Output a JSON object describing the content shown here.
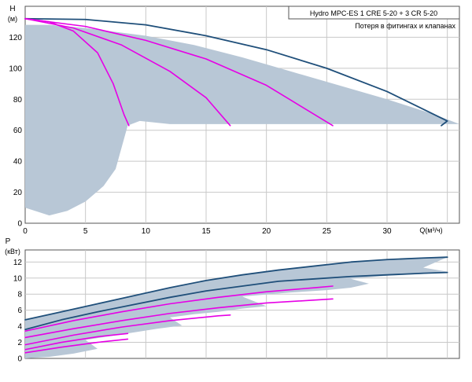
{
  "colors": {
    "region": "#b8c7d6",
    "outline": "#1f4f7a",
    "magenta": "#e600e6",
    "grid": "#c8c8c8",
    "axis": "#555555"
  },
  "legend": {
    "line1": "Hydro MPC-ES 1 CRE 5-20  +  3 CR 5-20",
    "line2": "Потеря в фитингах и клапанах"
  },
  "chart_data": [
    {
      "type": "area",
      "ylabel_top": "H",
      "ylabel_unit": "(м)",
      "xlabel": "Q(м³/ч)",
      "xlim": [
        0,
        36
      ],
      "ylim": [
        0,
        140
      ],
      "x_ticks": [
        0,
        5,
        10,
        15,
        20,
        25,
        30
      ],
      "y_ticks": [
        0,
        20,
        40,
        60,
        80,
        100,
        120
      ],
      "grid": true,
      "region": [
        [
          0,
          10
        ],
        [
          2,
          5
        ],
        [
          3.5,
          8
        ],
        [
          5,
          14
        ],
        [
          6.5,
          24
        ],
        [
          7.5,
          35
        ],
        [
          8.5,
          63
        ],
        [
          9.5,
          66
        ],
        [
          12,
          64
        ],
        [
          36,
          64
        ],
        [
          34,
          70
        ],
        [
          30,
          80
        ],
        [
          26,
          89
        ],
        [
          22,
          98
        ],
        [
          18,
          107
        ],
        [
          14,
          115
        ],
        [
          10,
          121
        ],
        [
          5,
          126
        ],
        [
          2,
          128
        ],
        [
          0,
          128
        ]
      ],
      "series": [
        {
          "outline": true,
          "points": [
            [
              0,
              132
            ],
            [
              5,
              131.5
            ],
            [
              10,
              128
            ],
            [
              15,
              121
            ],
            [
              20,
              112
            ],
            [
              25,
              100
            ],
            [
              30,
              85
            ],
            [
              35,
              66
            ],
            [
              34.5,
              63
            ]
          ]
        },
        {
          "points": [
            [
              0,
              132
            ],
            [
              2,
              130
            ],
            [
              4,
              124
            ],
            [
              6,
              110
            ],
            [
              7.3,
              90
            ],
            [
              8.2,
              70
            ],
            [
              8.6,
              63
            ]
          ]
        },
        {
          "points": [
            [
              0,
              132
            ],
            [
              4,
              126
            ],
            [
              8,
              115
            ],
            [
              12,
              98
            ],
            [
              15,
              81
            ],
            [
              17,
              63
            ]
          ]
        },
        {
          "points": [
            [
              0,
              132
            ],
            [
              5,
              127
            ],
            [
              10,
              118
            ],
            [
              15,
              106
            ],
            [
              20,
              89
            ],
            [
              25.5,
              63
            ]
          ]
        }
      ]
    },
    {
      "type": "area",
      "ylabel_top": "P",
      "ylabel_unit": "(кВт)",
      "xlim": [
        0,
        36
      ],
      "ylim": [
        0,
        13.5
      ],
      "y_ticks": [
        0,
        2,
        4,
        6,
        8,
        10,
        12
      ],
      "grid": true,
      "region": [
        [
          0,
          4.8
        ],
        [
          3,
          5.8
        ],
        [
          6,
          6.8
        ],
        [
          9,
          7.8
        ],
        [
          12,
          8.8
        ],
        [
          15,
          9.7
        ],
        [
          18,
          10.4
        ],
        [
          21,
          11.0
        ],
        [
          24,
          11.5
        ],
        [
          27,
          12.0
        ],
        [
          30,
          12.3
        ],
        [
          33,
          12.5
        ],
        [
          35,
          12.6
        ],
        [
          33,
          11.3
        ],
        [
          35,
          10.8
        ],
        [
          33,
          10.5
        ],
        [
          30,
          10.3
        ],
        [
          27,
          9.9
        ],
        [
          28.5,
          9.3
        ],
        [
          27,
          8.8
        ],
        [
          25,
          8.5
        ],
        [
          22,
          8.2
        ],
        [
          18,
          7.7
        ],
        [
          20,
          6.5
        ],
        [
          18,
          6.2
        ],
        [
          16,
          5.8
        ],
        [
          14,
          5.5
        ],
        [
          12,
          5.1
        ],
        [
          13,
          4.1
        ],
        [
          11,
          3.7
        ],
        [
          8,
          3.0
        ],
        [
          5,
          2.3
        ],
        [
          6,
          1.2
        ],
        [
          4,
          0.6
        ],
        [
          2,
          0.2
        ],
        [
          0,
          0.0
        ]
      ],
      "series": [
        {
          "outline": true,
          "points": [
            [
              0,
              4.8
            ],
            [
              3,
              5.8
            ],
            [
              6,
              6.8
            ],
            [
              9,
              7.8
            ],
            [
              12,
              8.8
            ],
            [
              15,
              9.7
            ],
            [
              18,
              10.4
            ],
            [
              21,
              11.0
            ],
            [
              24,
              11.5
            ],
            [
              27,
              12.0
            ],
            [
              30,
              12.3
            ],
            [
              33,
              12.5
            ],
            [
              35,
              12.6
            ]
          ]
        },
        {
          "outline": true,
          "points": [
            [
              0,
              3.6
            ],
            [
              3,
              4.8
            ],
            [
              6,
              5.8
            ],
            [
              9,
              6.7
            ],
            [
              12,
              7.6
            ],
            [
              15,
              8.4
            ],
            [
              18,
              9.0
            ],
            [
              21,
              9.6
            ],
            [
              24,
              9.9
            ],
            [
              27,
              10.2
            ],
            [
              30,
              10.4
            ],
            [
              33,
              10.6
            ],
            [
              35,
              10.7
            ]
          ]
        },
        {
          "points": [
            [
              0,
              3.4
            ],
            [
              4,
              4.7
            ],
            [
              8,
              5.8
            ],
            [
              12,
              6.8
            ],
            [
              16,
              7.6
            ],
            [
              20,
              8.3
            ],
            [
              24,
              8.8
            ],
            [
              25.5,
              9.0
            ]
          ]
        },
        {
          "points": [
            [
              0,
              2.6
            ],
            [
              4,
              3.7
            ],
            [
              8,
              4.7
            ],
            [
              12,
              5.6
            ],
            [
              16,
              6.3
            ],
            [
              20,
              6.9
            ],
            [
              25.5,
              7.4
            ]
          ]
        },
        {
          "points": [
            [
              0,
              1.7
            ],
            [
              4,
              2.9
            ],
            [
              8,
              3.9
            ],
            [
              12,
              4.7
            ],
            [
              16,
              5.3
            ],
            [
              17,
              5.4
            ]
          ]
        },
        {
          "points": [
            [
              0,
              1.1
            ],
            [
              3,
              2.0
            ],
            [
              6,
              2.7
            ],
            [
              8.5,
              3.1
            ]
          ]
        },
        {
          "points": [
            [
              0,
              0.7
            ],
            [
              3,
              1.4
            ],
            [
              6,
              2.0
            ],
            [
              8.5,
              2.4
            ]
          ]
        }
      ]
    }
  ]
}
